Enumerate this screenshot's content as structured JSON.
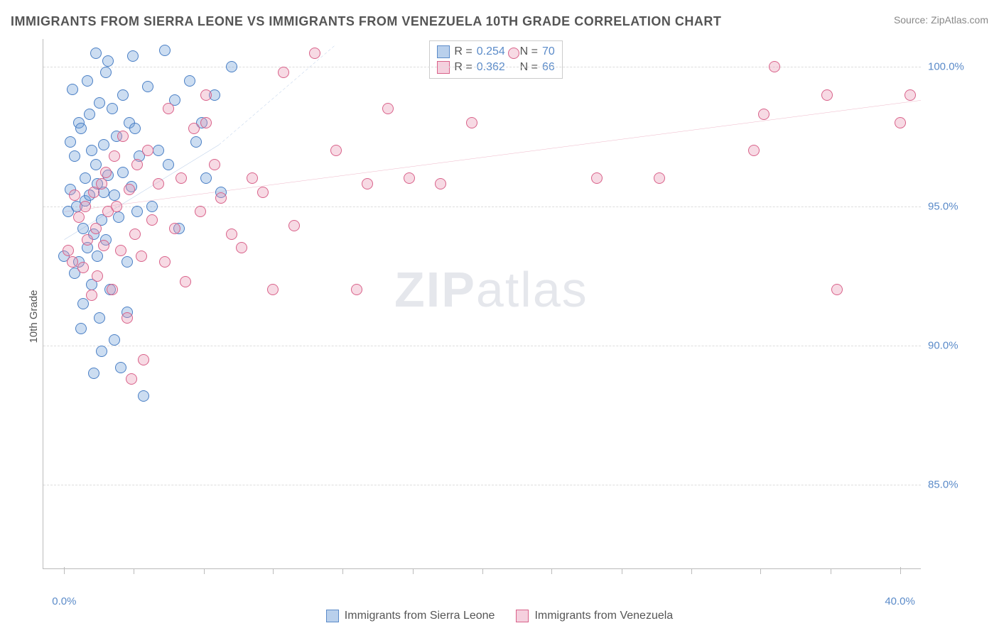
{
  "header": {
    "title": "IMMIGRANTS FROM SIERRA LEONE VS IMMIGRANTS FROM VENEZUELA 10TH GRADE CORRELATION CHART",
    "source_prefix": "Source: ",
    "source_name": "ZipAtlas.com"
  },
  "axes": {
    "y_label": "10th Grade",
    "y_min": 82.0,
    "y_max": 101.0,
    "y_ticks": [
      85.0,
      90.0,
      95.0,
      100.0
    ],
    "y_tick_labels": [
      "85.0%",
      "90.0%",
      "95.0%",
      "100.0%"
    ],
    "x_min": -1.0,
    "x_max": 41.0,
    "x_ticks": [
      0.0,
      40.0
    ],
    "x_tick_labels": [
      "0.0%",
      "40.0%"
    ],
    "x_minor_ticks": [
      3.33,
      6.67,
      10.0,
      13.33,
      16.67,
      20.0,
      23.33,
      26.67,
      30.0,
      33.33,
      36.67
    ]
  },
  "styling": {
    "grid_color": "#dddddd",
    "axis_color": "#bbbbbb",
    "label_color": "#555555",
    "tick_label_color": "#5b8bc9",
    "background": "#ffffff",
    "title_fontsize": 18,
    "tick_fontsize": 15,
    "marker_radius": 8,
    "marker_stroke_width": 1.5,
    "marker_fill_opacity": 0.25,
    "trend_line_width": 2
  },
  "series": {
    "sierra_leone": {
      "label": "Immigrants from Sierra Leone",
      "stroke": "#4a7fc5",
      "fill": "rgba(108,159,214,0.35)",
      "swatch_fill": "#b9d0ec",
      "swatch_border": "#5b8bc9",
      "r_value": "0.254",
      "n_value": "70",
      "trend": {
        "x1": 0.0,
        "y1": 93.8,
        "x2": 7.4,
        "y2": 97.2,
        "dash_x2": 13.0,
        "dash_y2": 100.8
      },
      "points": [
        [
          0.0,
          93.2
        ],
        [
          0.2,
          94.8
        ],
        [
          0.3,
          97.3
        ],
        [
          0.3,
          95.6
        ],
        [
          0.4,
          99.2
        ],
        [
          0.5,
          92.6
        ],
        [
          0.5,
          96.8
        ],
        [
          0.6,
          95.0
        ],
        [
          0.7,
          93.0
        ],
        [
          0.7,
          98.0
        ],
        [
          0.8,
          90.6
        ],
        [
          0.8,
          97.8
        ],
        [
          0.9,
          94.2
        ],
        [
          0.9,
          91.5
        ],
        [
          1.0,
          95.2
        ],
        [
          1.0,
          96.0
        ],
        [
          1.1,
          99.5
        ],
        [
          1.1,
          93.5
        ],
        [
          1.2,
          98.3
        ],
        [
          1.2,
          95.4
        ],
        [
          1.3,
          97.0
        ],
        [
          1.3,
          92.2
        ],
        [
          1.4,
          94.0
        ],
        [
          1.4,
          89.0
        ],
        [
          1.5,
          96.5
        ],
        [
          1.5,
          100.5
        ],
        [
          1.6,
          93.2
        ],
        [
          1.6,
          95.8
        ],
        [
          1.7,
          98.7
        ],
        [
          1.7,
          91.0
        ],
        [
          1.8,
          94.5
        ],
        [
          1.8,
          89.8
        ],
        [
          1.9,
          97.2
        ],
        [
          1.9,
          95.5
        ],
        [
          2.0,
          99.8
        ],
        [
          2.0,
          93.8
        ],
        [
          2.1,
          96.1
        ],
        [
          2.1,
          100.2
        ],
        [
          2.2,
          92.0
        ],
        [
          2.3,
          98.5
        ],
        [
          2.4,
          95.4
        ],
        [
          2.4,
          90.2
        ],
        [
          2.5,
          97.5
        ],
        [
          2.6,
          94.6
        ],
        [
          2.7,
          89.2
        ],
        [
          2.8,
          99.0
        ],
        [
          2.8,
          96.2
        ],
        [
          3.0,
          93.0
        ],
        [
          3.0,
          91.2
        ],
        [
          3.1,
          98.0
        ],
        [
          3.2,
          95.7
        ],
        [
          3.3,
          100.4
        ],
        [
          3.4,
          97.8
        ],
        [
          3.5,
          94.8
        ],
        [
          3.6,
          96.8
        ],
        [
          3.8,
          88.2
        ],
        [
          4.0,
          99.3
        ],
        [
          4.2,
          95.0
        ],
        [
          4.5,
          97.0
        ],
        [
          4.8,
          100.6
        ],
        [
          5.0,
          96.5
        ],
        [
          5.3,
          98.8
        ],
        [
          5.5,
          94.2
        ],
        [
          6.0,
          99.5
        ],
        [
          6.3,
          97.3
        ],
        [
          6.6,
          98.0
        ],
        [
          6.8,
          96.0
        ],
        [
          7.2,
          99.0
        ],
        [
          7.5,
          95.5
        ],
        [
          8.0,
          100.0
        ]
      ]
    },
    "venezuela": {
      "label": "Immigrants from Venezuela",
      "stroke": "#d9628a",
      "fill": "rgba(231,148,178,0.35)",
      "swatch_fill": "#f5d0de",
      "swatch_border": "#d9628a",
      "r_value": "0.362",
      "n_value": "66",
      "trend": {
        "x1": 0.0,
        "y1": 94.8,
        "x2": 41.0,
        "y2": 98.8
      },
      "points": [
        [
          0.2,
          93.4
        ],
        [
          0.4,
          93.0
        ],
        [
          0.5,
          95.4
        ],
        [
          0.7,
          94.6
        ],
        [
          0.9,
          92.8
        ],
        [
          1.0,
          95.0
        ],
        [
          1.1,
          93.8
        ],
        [
          1.3,
          91.8
        ],
        [
          1.4,
          95.5
        ],
        [
          1.5,
          94.2
        ],
        [
          1.6,
          92.5
        ],
        [
          1.8,
          95.8
        ],
        [
          1.9,
          93.6
        ],
        [
          2.0,
          96.2
        ],
        [
          2.1,
          94.8
        ],
        [
          2.3,
          92.0
        ],
        [
          2.4,
          96.8
        ],
        [
          2.5,
          95.0
        ],
        [
          2.7,
          93.4
        ],
        [
          2.8,
          97.5
        ],
        [
          3.0,
          91.0
        ],
        [
          3.1,
          95.6
        ],
        [
          3.2,
          88.8
        ],
        [
          3.4,
          94.0
        ],
        [
          3.5,
          96.5
        ],
        [
          3.7,
          93.2
        ],
        [
          3.8,
          89.5
        ],
        [
          4.0,
          97.0
        ],
        [
          4.2,
          94.5
        ],
        [
          4.5,
          95.8
        ],
        [
          4.8,
          93.0
        ],
        [
          5.0,
          98.5
        ],
        [
          5.3,
          94.2
        ],
        [
          5.6,
          96.0
        ],
        [
          5.8,
          92.3
        ],
        [
          6.2,
          97.8
        ],
        [
          6.5,
          94.8
        ],
        [
          6.8,
          99.0
        ],
        [
          6.8,
          98.0
        ],
        [
          7.2,
          96.5
        ],
        [
          7.5,
          95.3
        ],
        [
          8.0,
          94.0
        ],
        [
          8.5,
          93.5
        ],
        [
          9.0,
          96.0
        ],
        [
          9.5,
          95.5
        ],
        [
          10.0,
          92.0
        ],
        [
          10.5,
          99.8
        ],
        [
          11.0,
          94.3
        ],
        [
          12.0,
          100.5
        ],
        [
          13.0,
          97.0
        ],
        [
          14.0,
          92.0
        ],
        [
          14.5,
          95.8
        ],
        [
          15.5,
          98.5
        ],
        [
          16.5,
          96.0
        ],
        [
          18.0,
          95.8
        ],
        [
          19.5,
          98.0
        ],
        [
          21.5,
          100.5
        ],
        [
          25.5,
          96.0
        ],
        [
          28.5,
          96.0
        ],
        [
          33.0,
          97.0
        ],
        [
          33.5,
          98.3
        ],
        [
          34.0,
          100.0
        ],
        [
          36.5,
          99.0
        ],
        [
          37.0,
          92.0
        ],
        [
          40.0,
          98.0
        ],
        [
          40.5,
          99.0
        ]
      ]
    }
  },
  "legend": {
    "r_prefix": "R = ",
    "n_prefix": "N = "
  },
  "watermark": {
    "zip": "ZIP",
    "atlas": "atlas"
  }
}
